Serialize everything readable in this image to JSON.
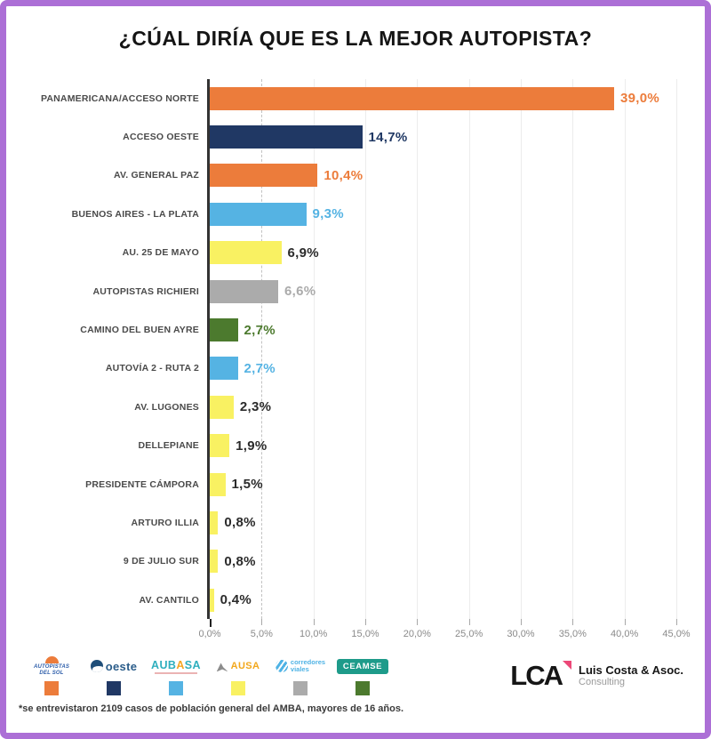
{
  "frame": {
    "border_color": "#AC6FD6"
  },
  "title": "¿CÚAL DIRÍA QUE ES LA MEJOR AUTOPISTA?",
  "chart_data": {
    "type": "bar",
    "orientation": "horizontal",
    "title": "¿CÚAL DIRÍA QUE ES LA MEJOR AUTOPISTA?",
    "categories": [
      "PANAMERICANA/ACCESO NORTE",
      "ACCESO OESTE",
      "AV. GENERAL PAZ",
      "BUENOS AIRES - LA PLATA",
      "AU. 25 DE MAYO",
      "AUTOPISTAS RICHIERI",
      "CAMINO DEL BUEN AYRE",
      "AUTOVÍA 2 - RUTA 2",
      "AV. LUGONES",
      "DELLEPIANE",
      "PRESIDENTE CÁMPORA",
      "ARTURO ILLIA",
      "9 DE JULIO SUR",
      "AV. CANTILO"
    ],
    "values": [
      39.0,
      14.7,
      10.4,
      9.3,
      6.9,
      6.6,
      2.7,
      2.7,
      2.3,
      1.9,
      1.5,
      0.8,
      0.8,
      0.4
    ],
    "value_labels": [
      "39,0%",
      "14,7%",
      "10,4%",
      "9,3%",
      "6,9%",
      "6,6%",
      "2,7%",
      "2,7%",
      "2,3%",
      "1,9%",
      "1,5%",
      "0,8%",
      "0,8%",
      "0,4%"
    ],
    "bar_colors": [
      "#EC7C3B",
      "#203864",
      "#EC7C3B",
      "#55B3E3",
      "#F9F162",
      "#ABABAB",
      "#4C7A2E",
      "#55B3E3",
      "#F9F162",
      "#F9F162",
      "#F9F162",
      "#F9F162",
      "#F9F162",
      "#F9F162"
    ],
    "value_label_colors": [
      "#EC7C3B",
      "#203864",
      "#EC7C3B",
      "#55B3E3",
      "#2b2b2b",
      "#ABABAB",
      "#4C7A2E",
      "#55B3E3",
      "#2b2b2b",
      "#2b2b2b",
      "#2b2b2b",
      "#2b2b2b",
      "#2b2b2b",
      "#2b2b2b"
    ],
    "xlim": [
      0,
      45
    ],
    "x_ticks": [
      "0,0%",
      "5,0%",
      "10,0%",
      "15,0%",
      "20,0%",
      "25,0%",
      "30,0%",
      "35,0%",
      "40,0%",
      "45,0%"
    ],
    "grid": "vertical-gridlines-every-5pct",
    "legend_position": "bottom"
  },
  "legend": {
    "items": [
      {
        "name": "autopistas-del-sol",
        "label_line1": "AUTOPISTAS",
        "label_line2": "DEL SOL",
        "color": "#EC7C3B"
      },
      {
        "name": "autopistas-del-oeste",
        "label": "oeste",
        "color": "#203864"
      },
      {
        "name": "aubasa",
        "label_part1": "AUB",
        "label_part2": "A",
        "label_part3": "SA",
        "color": "#55B3E3"
      },
      {
        "name": "ausa",
        "label": "AUSA",
        "color": "#F9F162"
      },
      {
        "name": "corredores-viales",
        "label_line1": "corredores",
        "label_line2": "viales",
        "color": "#ABABAB"
      },
      {
        "name": "ceamse",
        "label": "CEAMSE",
        "color": "#4C7A2E"
      }
    ]
  },
  "branding": {
    "logo_text": "LCA",
    "company": "Luis Costa & Asoc.",
    "division": "Consulting"
  },
  "footnote": "*se entrevistaron 2109 casos de población general del AMBA, mayores de 16 años."
}
